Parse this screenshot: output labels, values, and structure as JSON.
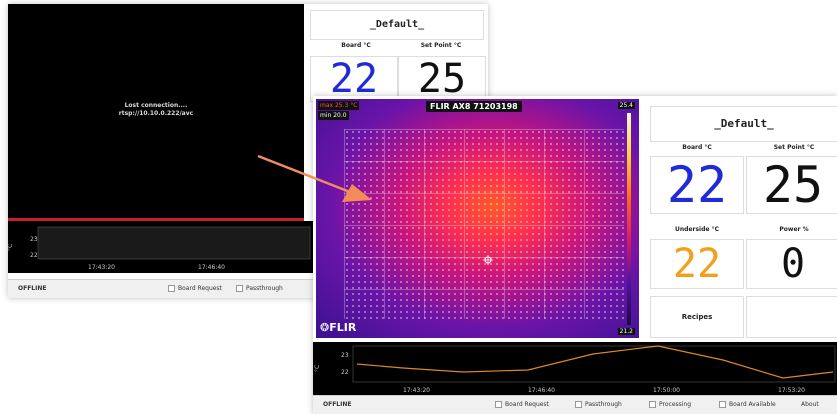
{
  "back_window": {
    "message_line1": "Lost connection....",
    "message_line2": "rtsp://10.10.0.222/avc",
    "title_button": "_Default_",
    "board_label": "Board °C",
    "setpoint_label": "Set Point °C",
    "board_value": "22",
    "setpoint_value": "25",
    "chart_y_ticks": [
      "23",
      "22"
    ],
    "chart_x_ticks": [
      "17:43:20",
      "17:46:40"
    ],
    "y_axis_label": "°C",
    "status": "OFFLINE",
    "checkboxes": [
      "Board Request",
      "Passthrough"
    ]
  },
  "front_window": {
    "camera_title": "FLIR AX8 71203198",
    "max_label": "max 25.3 °C",
    "min_label": "min 20.0",
    "scale_top": "25.4",
    "scale_bottom": "21.2",
    "logo": "FLIR",
    "title_button": "_Default_",
    "board_label": "Board °C",
    "setpoint_label": "Set Point °C",
    "underside_label": "Underside °C",
    "power_label": "Power %",
    "board_value": "22",
    "setpoint_value": "25",
    "underside_value": "22",
    "power_value": "0",
    "recipes_button": "Recipes",
    "chart_y_ticks": [
      "23",
      "22"
    ],
    "chart_x_ticks": [
      "17:43:20",
      "17:46:40",
      "17:50:00",
      "17:53:20"
    ],
    "y_axis_label": "°C",
    "status": "OFFLINE",
    "checkboxes": [
      "Board Request",
      "Passthrough",
      "Processing",
      "Board Available"
    ],
    "about_label": "About"
  },
  "colors": {
    "board_blue": "#1f2bd6",
    "underside_orange": "#f2a01a",
    "chart_line": "#d98a1f",
    "red_line": "#c81e2f"
  },
  "arrow_color": "#f28c5a"
}
